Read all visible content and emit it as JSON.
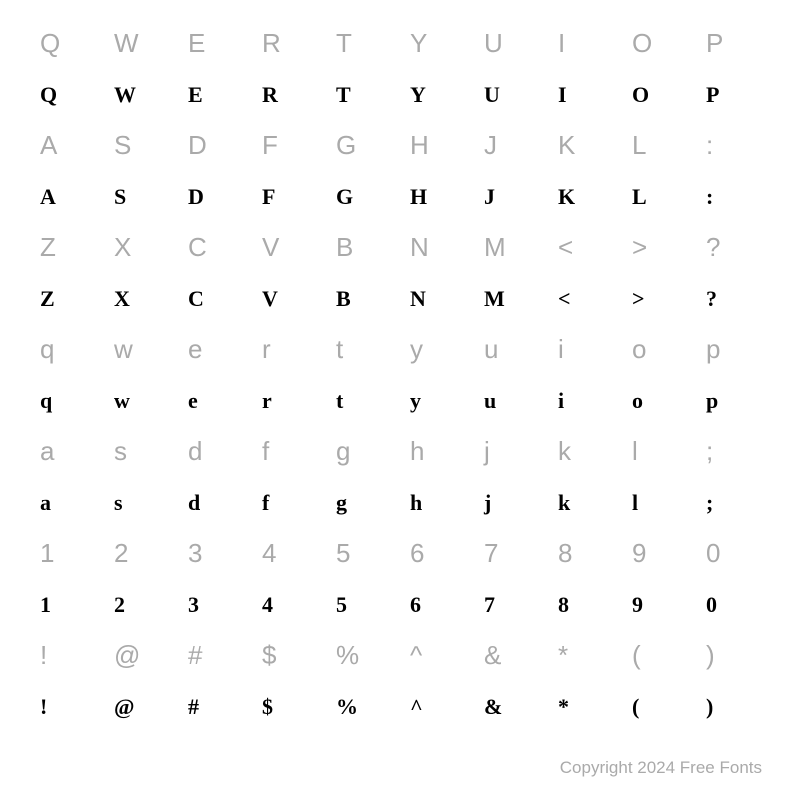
{
  "grid": {
    "rows": [
      {
        "type": "reference",
        "chars": [
          "Q",
          "W",
          "E",
          "R",
          "T",
          "Y",
          "U",
          "I",
          "O",
          "P"
        ]
      },
      {
        "type": "sample",
        "chars": [
          "Q",
          "W",
          "E",
          "R",
          "T",
          "Y",
          "U",
          "I",
          "O",
          "P"
        ]
      },
      {
        "type": "reference",
        "chars": [
          "A",
          "S",
          "D",
          "F",
          "G",
          "H",
          "J",
          "K",
          "L",
          ":"
        ]
      },
      {
        "type": "sample",
        "chars": [
          "A",
          "S",
          "D",
          "F",
          "G",
          "H",
          "J",
          "K",
          "L",
          ":"
        ]
      },
      {
        "type": "reference",
        "chars": [
          "Z",
          "X",
          "C",
          "V",
          "B",
          "N",
          "M",
          "<",
          ">",
          "?"
        ]
      },
      {
        "type": "sample",
        "chars": [
          "Z",
          "X",
          "C",
          "V",
          "B",
          "N",
          "M",
          "<",
          ">",
          "?"
        ]
      },
      {
        "type": "reference",
        "chars": [
          "q",
          "w",
          "e",
          "r",
          "t",
          "y",
          "u",
          "i",
          "o",
          "p"
        ]
      },
      {
        "type": "sample",
        "chars": [
          "q",
          "w",
          "e",
          "r",
          "t",
          "y",
          "u",
          "i",
          "o",
          "p"
        ]
      },
      {
        "type": "reference",
        "chars": [
          "a",
          "s",
          "d",
          "f",
          "g",
          "h",
          "j",
          "k",
          "l",
          ";"
        ]
      },
      {
        "type": "sample",
        "chars": [
          "a",
          "s",
          "d",
          "f",
          "g",
          "h",
          "j",
          "k",
          "l",
          ";"
        ]
      },
      {
        "type": "reference",
        "chars": [
          "1",
          "2",
          "3",
          "4",
          "5",
          "6",
          "7",
          "8",
          "9",
          "0"
        ]
      },
      {
        "type": "sample",
        "chars": [
          "1",
          "2",
          "3",
          "4",
          "5",
          "6",
          "7",
          "8",
          "9",
          "0"
        ]
      },
      {
        "type": "reference",
        "chars": [
          "!",
          "@",
          "#",
          "$",
          "%",
          "^",
          "&",
          "*",
          "(",
          ")"
        ]
      },
      {
        "type": "sample",
        "chars": [
          "!",
          "@",
          "#",
          "$",
          "%",
          "^",
          "&",
          "*",
          "(",
          ")"
        ]
      }
    ],
    "columns": 10,
    "reference_color": "#aaaaaa",
    "sample_color": "#000000",
    "reference_fontsize": 26,
    "sample_fontsize": 22,
    "background_color": "#ffffff"
  },
  "copyright": "Copyright 2024 Free Fonts"
}
